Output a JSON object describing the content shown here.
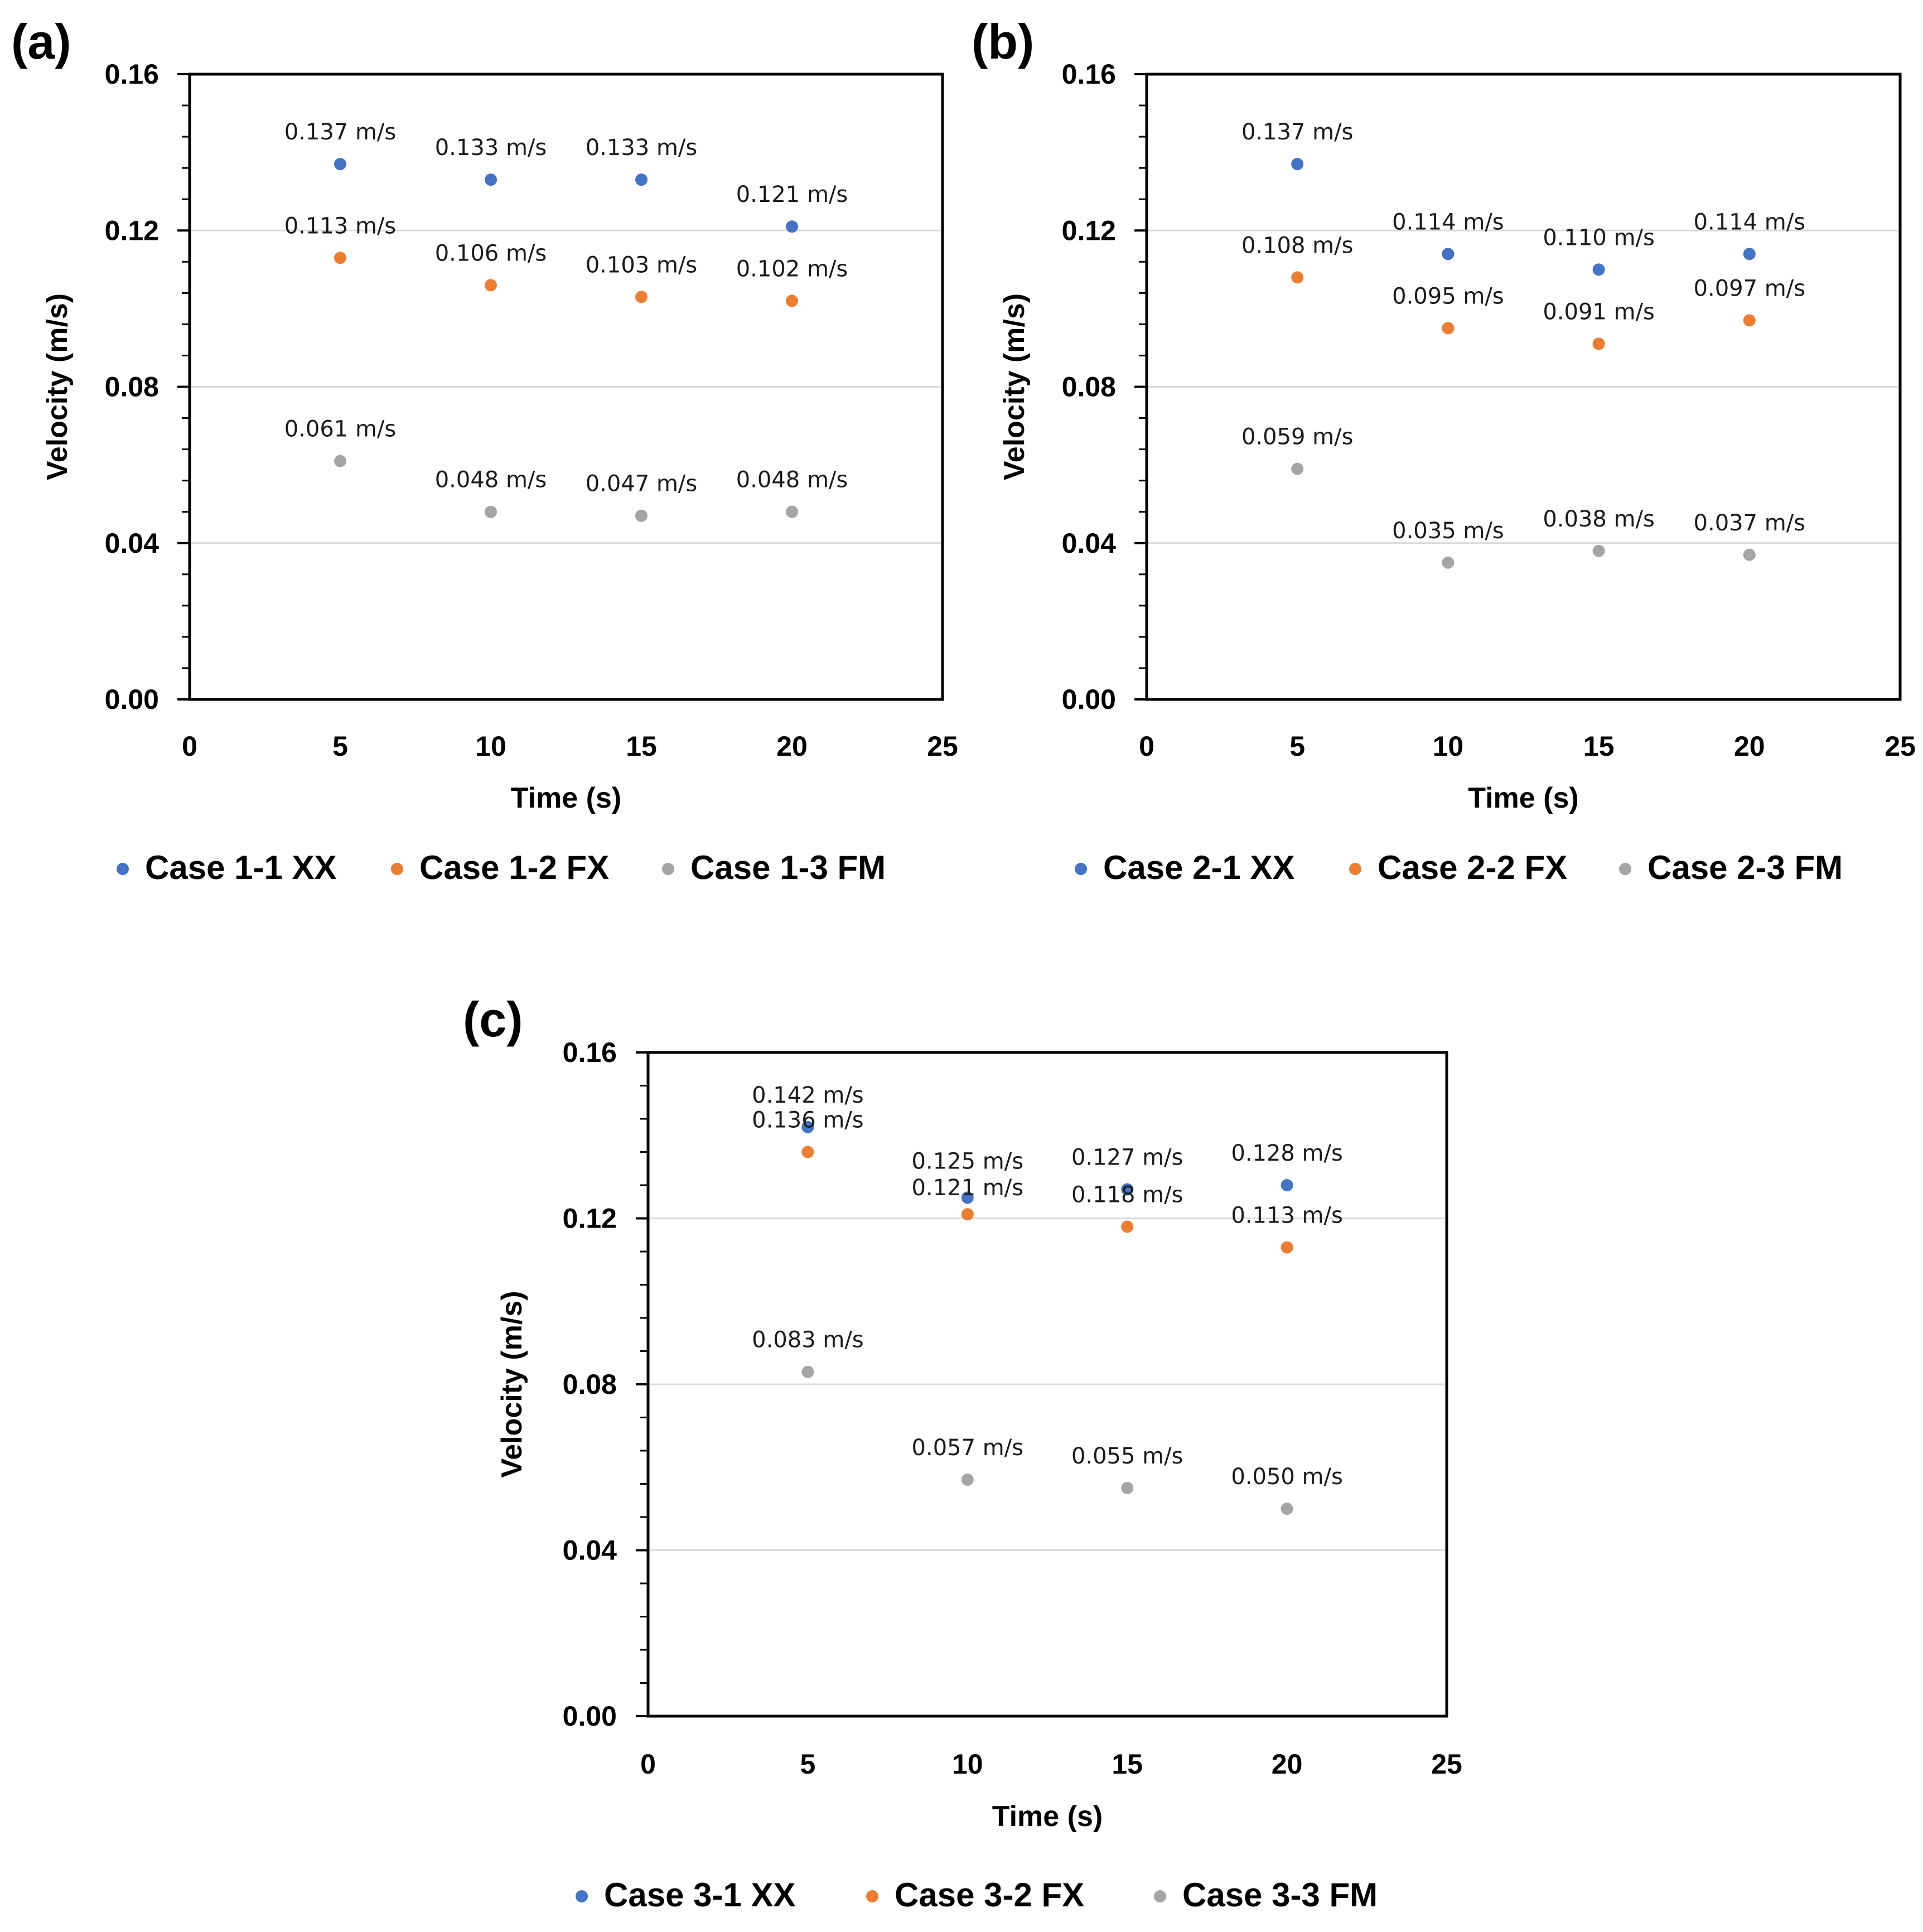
{
  "colors": {
    "xx": "#4472c4",
    "fx": "#ed7d31",
    "fm": "#a5a5a5",
    "grid": "#d9d9d9"
  },
  "chart_data": [
    {
      "type": "scatter",
      "panel_label": "(a)",
      "xlabel": "Time (s)",
      "ylabel": "Velocity (m/s)",
      "xlim": [
        0,
        25
      ],
      "ylim": [
        0,
        0.16
      ],
      "x_ticks": [
        "0",
        "5",
        "10",
        "15",
        "20",
        "25"
      ],
      "y_ticks": [
        "0.00",
        "0.04",
        "0.08",
        "0.12",
        "0.16"
      ],
      "grid": "horizontal",
      "legend_position": "bottom",
      "series": [
        {
          "name": "Case 1-1 XX",
          "color_key": "xx",
          "x": [
            5,
            10,
            15,
            20
          ],
          "y": [
            0.137,
            0.133,
            0.133,
            0.121
          ],
          "labels": [
            "0.137 m/s",
            "0.133 m/s",
            "0.133 m/s",
            "0.121 m/s"
          ]
        },
        {
          "name": "Case 1-2 FX",
          "color_key": "fx",
          "x": [
            5,
            10,
            15,
            20
          ],
          "y": [
            0.113,
            0.106,
            0.103,
            0.102
          ],
          "labels": [
            "0.113 m/s",
            "0.106 m/s",
            "0.103 m/s",
            "0.102 m/s"
          ]
        },
        {
          "name": "Case 1-3 FM",
          "color_key": "fm",
          "x": [
            5,
            10,
            15,
            20
          ],
          "y": [
            0.061,
            0.048,
            0.047,
            0.048
          ],
          "labels": [
            "0.061 m/s",
            "0.048 m/s",
            "0.047 m/s",
            "0.048 m/s"
          ]
        }
      ]
    },
    {
      "type": "scatter",
      "panel_label": "(b)",
      "xlabel": "Time (s)",
      "ylabel": "Velocity (m/s)",
      "xlim": [
        0,
        25
      ],
      "ylim": [
        0,
        0.16
      ],
      "x_ticks": [
        "0",
        "5",
        "10",
        "15",
        "20",
        "25"
      ],
      "y_ticks": [
        "0.00",
        "0.04",
        "0.08",
        "0.12",
        "0.16"
      ],
      "grid": "horizontal",
      "legend_position": "bottom",
      "series": [
        {
          "name": "Case 2-1 XX",
          "color_key": "xx",
          "x": [
            5,
            10,
            15,
            20
          ],
          "y": [
            0.137,
            0.114,
            0.11,
            0.114
          ],
          "labels": [
            "0.137 m/s",
            "0.114 m/s",
            "0.110 m/s",
            "0.114 m/s"
          ]
        },
        {
          "name": "Case 2-2 FX",
          "color_key": "fx",
          "x": [
            5,
            10,
            15,
            20
          ],
          "y": [
            0.108,
            0.095,
            0.091,
            0.097
          ],
          "labels": [
            "0.108 m/s",
            "0.095 m/s",
            "0.091 m/s",
            "0.097 m/s"
          ]
        },
        {
          "name": "Case 2-3 FM",
          "color_key": "fm",
          "x": [
            5,
            10,
            15,
            20
          ],
          "y": [
            0.059,
            0.035,
            0.038,
            0.037
          ],
          "labels": [
            "0.059 m/s",
            "0.035 m/s",
            "0.038 m/s",
            "0.037 m/s"
          ]
        }
      ]
    },
    {
      "type": "scatter",
      "panel_label": "(c)",
      "xlabel": "Time (s)",
      "ylabel": "Velocity (m/s)",
      "xlim": [
        0,
        25
      ],
      "ylim": [
        0,
        0.16
      ],
      "x_ticks": [
        "0",
        "5",
        "10",
        "15",
        "20",
        "25"
      ],
      "y_ticks": [
        "0.00",
        "0.04",
        "0.08",
        "0.12",
        "0.16"
      ],
      "grid": "horizontal",
      "legend_position": "bottom",
      "series": [
        {
          "name": "Case 3-1 XX",
          "color_key": "xx",
          "x": [
            5,
            10,
            15,
            20
          ],
          "y": [
            0.142,
            0.125,
            0.127,
            0.128
          ],
          "labels": [
            "0.142 m/s",
            "0.125 m/s",
            "0.127 m/s",
            "0.128 m/s"
          ]
        },
        {
          "name": "Case 3-2 FX",
          "color_key": "fx",
          "x": [
            5,
            10,
            15,
            20
          ],
          "y": [
            0.136,
            0.121,
            0.118,
            0.113
          ],
          "labels": [
            "0.136 m/s",
            "0.121 m/s",
            "0.118 m/s",
            "0.113 m/s"
          ]
        },
        {
          "name": "Case 3-3 FM",
          "color_key": "fm",
          "x": [
            5,
            10,
            15,
            20
          ],
          "y": [
            0.083,
            0.057,
            0.055,
            0.05
          ],
          "labels": [
            "0.083 m/s",
            "0.057 m/s",
            "0.055 m/s",
            "0.050 m/s"
          ]
        }
      ]
    }
  ]
}
